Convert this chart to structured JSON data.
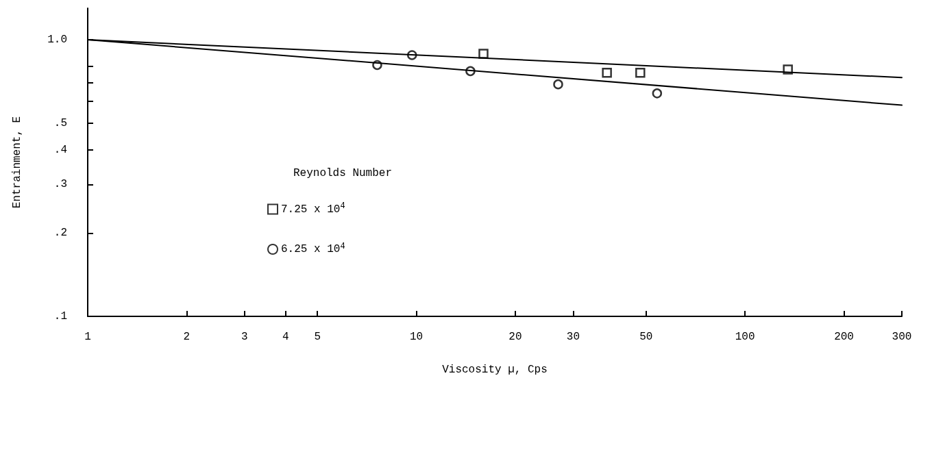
{
  "chart_data": {
    "type": "scatter",
    "xlabel": "Viscosity µ, Cps",
    "ylabel": "Entrainment, E",
    "legend_title": "Reynolds Number",
    "log": "xy",
    "grid": false,
    "legend": "center left",
    "xlim": [
      1,
      300
    ],
    "xticks": [
      1,
      2,
      3,
      4,
      5,
      10,
      20,
      30,
      50,
      100,
      200,
      300
    ],
    "ylim": [
      0.1,
      1.3
    ],
    "yticks": [
      {
        "value": 0.1,
        "label": ".1"
      },
      {
        "value": 0.2,
        "label": ".2"
      },
      {
        "value": 0.3,
        "label": ".3"
      },
      {
        "value": 0.4,
        "label": ".4"
      },
      {
        "value": 0.5,
        "label": ".5"
      },
      {
        "value": 0.6,
        "label": null
      },
      {
        "value": 0.7,
        "label": null
      },
      {
        "value": 0.8,
        "label": null
      },
      {
        "value": 1.0,
        "label": "1.0"
      }
    ],
    "series": [
      {
        "name": "7.25 x 10$^{4}$",
        "color": "#000000",
        "marker": "square",
        "x": [
          16,
          38,
          48,
          135
        ],
        "values": [
          0.89,
          0.76,
          0.76,
          0.78
        ]
      },
      {
        "name": "6.25 x 10$^{4}$",
        "color": "#000000",
        "marker": "circle",
        "x": [
          7.6,
          9.7,
          14.6,
          27,
          54
        ],
        "values": [
          0.81,
          0.88,
          0.77,
          0.69,
          0.64
        ]
      },
      {
        "type": "line",
        "color": "#000000",
        "marker": "none",
        "x": [
          1,
          300
        ],
        "values": [
          1.0,
          0.73
        ]
      },
      {
        "type": "line",
        "color": "#000000",
        "marker": "none",
        "x": [
          1,
          300
        ],
        "values": [
          1.0,
          0.58
        ]
      }
    ]
  }
}
